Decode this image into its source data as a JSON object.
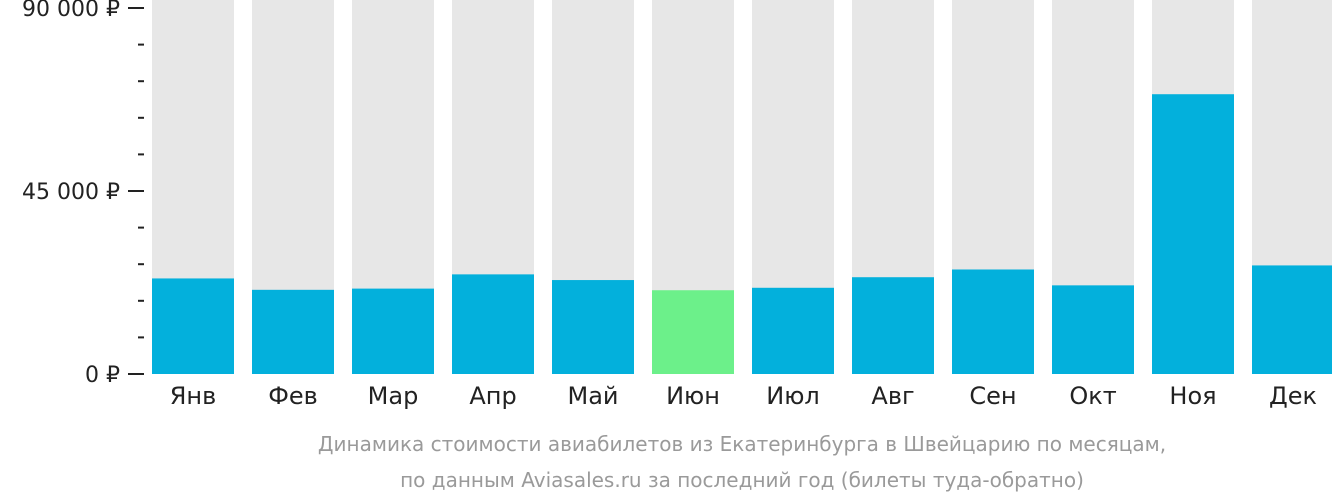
{
  "chart_data": {
    "type": "bar",
    "categories": [
      "Янв",
      "Фев",
      "Мар",
      "Апр",
      "Май",
      "Июн",
      "Июл",
      "Авг",
      "Сен",
      "Окт",
      "Ноя",
      "Дек"
    ],
    "values": [
      23500,
      20700,
      21000,
      24500,
      23100,
      20600,
      21200,
      23800,
      25700,
      21800,
      68800,
      26700
    ],
    "highlight_index": 5,
    "ylim": [
      0,
      90000
    ],
    "y_ticks": [
      {
        "value": 0,
        "label": "0 ₽"
      },
      {
        "value": 45000,
        "label": "45 000 ₽"
      },
      {
        "value": 90000,
        "label": "90 000 ₽"
      }
    ],
    "y_minor_step": 9000,
    "caption_lines": [
      "Динамика стоимости авиабилетов из Екатеринбурга в Швейцарию по месяцам,",
      "по данным Aviasales.ru за последний год (билеты туда-обратно)"
    ],
    "title": "",
    "xlabel": "",
    "ylabel": "",
    "grid": false,
    "legend": "none"
  },
  "colors": {
    "bar": "#03b0dc",
    "bar_highlight": "#6cf08a",
    "bar_background": "#e7e7e7",
    "axis": "#222222",
    "caption": "#9a9a9a"
  }
}
